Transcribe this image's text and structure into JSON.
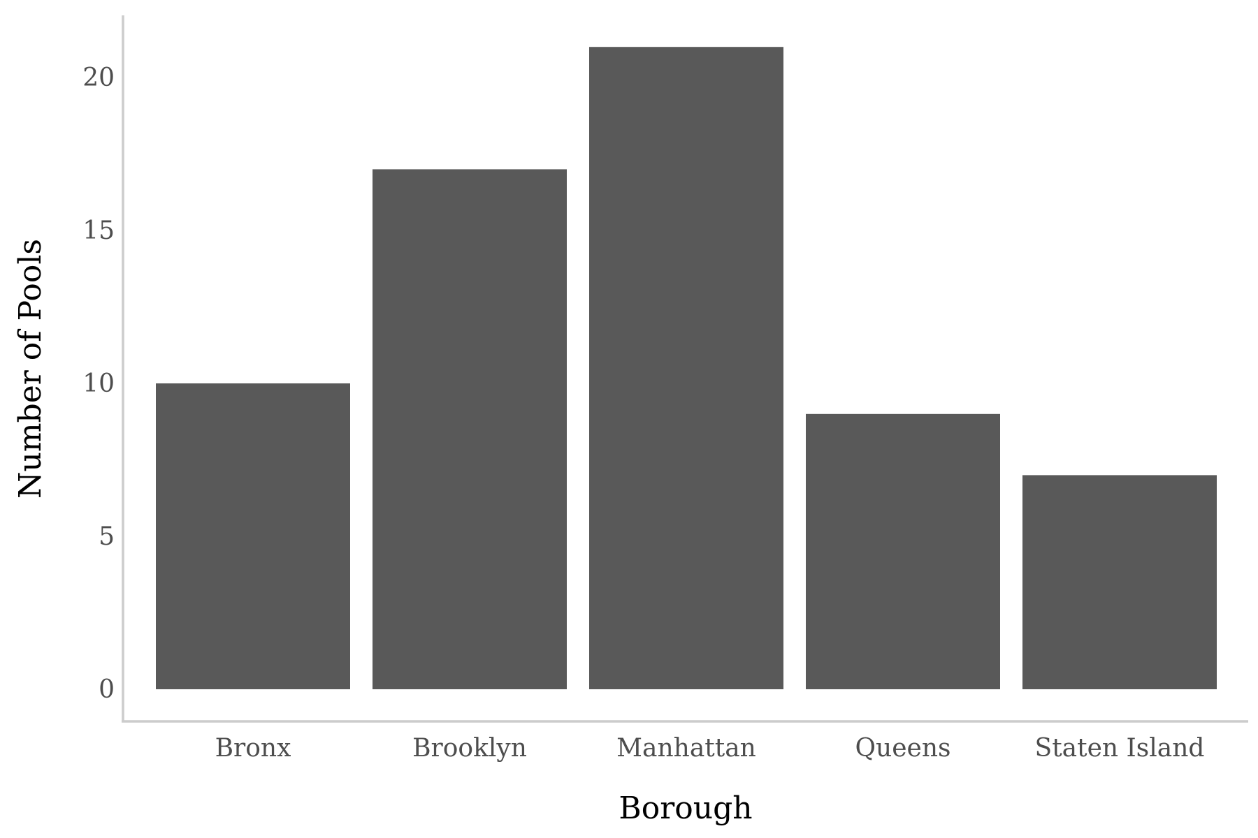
{
  "chart_data": {
    "type": "bar",
    "title": "",
    "xlabel": "Borough",
    "ylabel": "Number of Pools",
    "categories": [
      "Bronx",
      "Brooklyn",
      "Manhattan",
      "Queens",
      "Staten Island"
    ],
    "values": [
      10,
      17,
      21,
      9,
      7
    ],
    "ylim": [
      0,
      22
    ],
    "yticks": [
      0,
      5,
      10,
      15,
      20
    ],
    "grid": false,
    "legend": "none",
    "bar_color": "#595959",
    "axis_color": "#cccccc"
  }
}
